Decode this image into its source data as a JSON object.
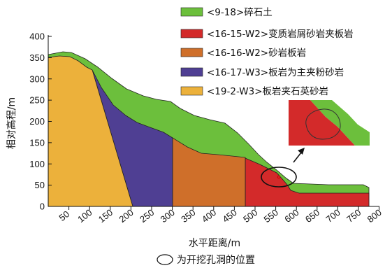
{
  "legend": [
    {
      "label": "<9-18>碎石土",
      "color": "#6cbf3c"
    },
    {
      "label": "<16-15-W2>变质岩屑砂岩夹板岩",
      "color": "#d32a2a"
    },
    {
      "label": "<16-16-W2>砂岩板岩",
      "color": "#cf6f2a"
    },
    {
      "label": "<16-17-W3>板岩为主夹粉砂岩",
      "color": "#4f3f93"
    },
    {
      "label": "<19-2-W3>板岩夹石英砂岩",
      "color": "#ecb13b"
    }
  ],
  "axes": {
    "y_title": "相对高程/m",
    "x_title": "水平距离/m",
    "y_ticks": [
      "0",
      "50",
      "100",
      "150",
      "200",
      "250",
      "300",
      "350",
      "400"
    ],
    "x_ticks": [
      "50",
      "100",
      "150",
      "200",
      "250",
      "300",
      "350",
      "400",
      "450",
      "500",
      "550",
      "600",
      "650",
      "700",
      "750",
      "800"
    ]
  },
  "caption": "为开挖孔洞的位置",
  "colors": {
    "gravel_soil": "#6cbf3c",
    "metasandstone": "#d32a2a",
    "sandstone_slate": "#cf6f2a",
    "slate_siltstone": "#4f3f93",
    "slate_quartz": "#ecb13b"
  }
}
